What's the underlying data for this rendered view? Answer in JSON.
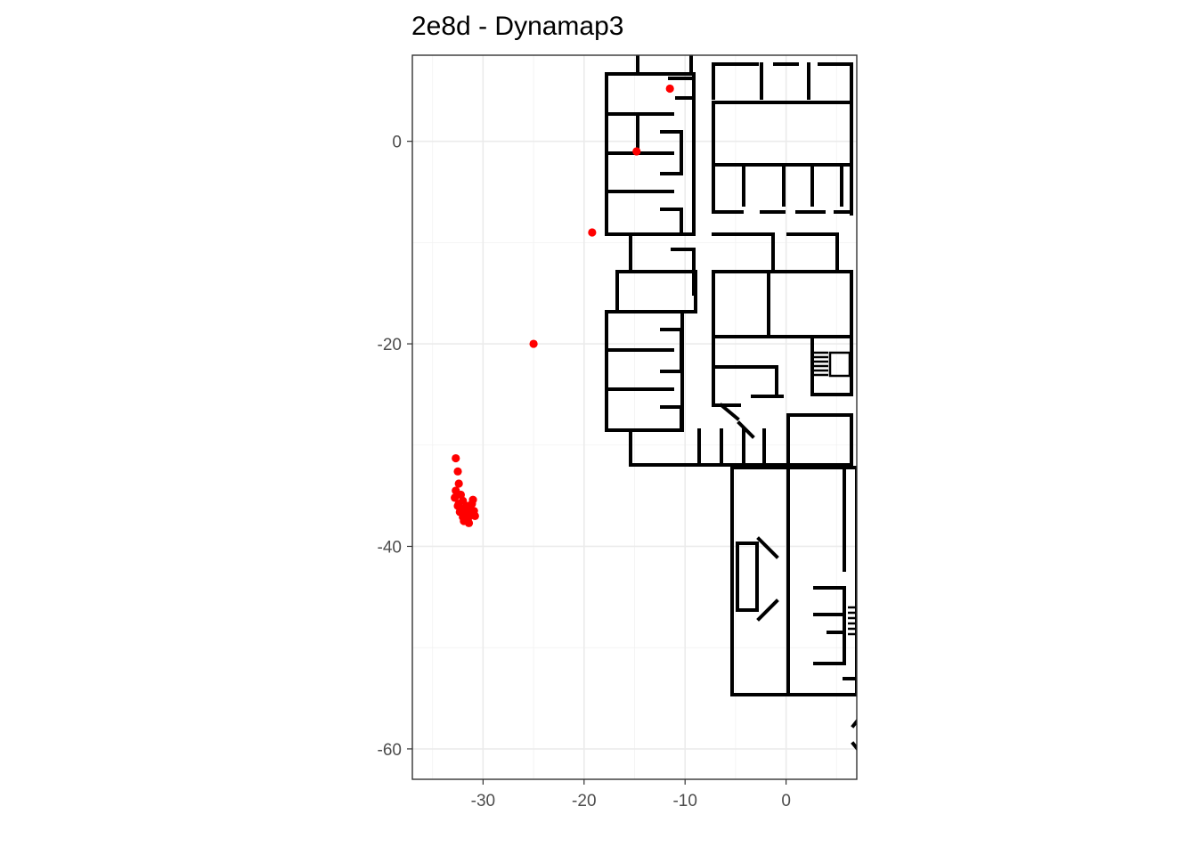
{
  "chart_data": {
    "type": "scatter",
    "title": "2e8d - Dynamap3",
    "xlabel": "",
    "ylabel": "",
    "xlim": [
      -37,
      7
    ],
    "ylim": [
      -63,
      8.5
    ],
    "x_ticks": [
      -30,
      -20,
      -10,
      0
    ],
    "y_ticks": [
      0,
      -20,
      -40,
      -60
    ],
    "x_tick_labels": [
      "-30",
      "-20",
      "-10",
      "0"
    ],
    "y_tick_labels": [
      "0",
      "-20",
      "-40",
      "-60"
    ],
    "grid": true,
    "legend": "none",
    "point_color": "#ff0000",
    "background": "floor plan map",
    "points": [
      {
        "x": -11.5,
        "y": 5.2
      },
      {
        "x": -14.8,
        "y": -1.0
      },
      {
        "x": -19.2,
        "y": -9.0
      },
      {
        "x": -25.0,
        "y": -20.0
      },
      {
        "x": -32.7,
        "y": -31.3
      },
      {
        "x": -32.5,
        "y": -32.6
      },
      {
        "x": -32.4,
        "y": -33.8
      },
      {
        "x": -32.7,
        "y": -34.5
      },
      {
        "x": -32.2,
        "y": -34.9
      },
      {
        "x": -32.8,
        "y": -35.2
      },
      {
        "x": -32.0,
        "y": -35.5
      },
      {
        "x": -31.0,
        "y": -35.4
      },
      {
        "x": -32.4,
        "y": -35.8
      },
      {
        "x": -31.6,
        "y": -36.0
      },
      {
        "x": -32.1,
        "y": -36.3
      },
      {
        "x": -31.3,
        "y": -36.2
      },
      {
        "x": -30.9,
        "y": -36.5
      },
      {
        "x": -32.3,
        "y": -36.6
      },
      {
        "x": -31.8,
        "y": -36.8
      },
      {
        "x": -31.2,
        "y": -36.9
      },
      {
        "x": -32.0,
        "y": -37.1
      },
      {
        "x": -31.5,
        "y": -37.3
      },
      {
        "x": -30.8,
        "y": -37.0
      },
      {
        "x": -31.9,
        "y": -37.5
      },
      {
        "x": -31.4,
        "y": -37.7
      },
      {
        "x": -31.7,
        "y": -36.4
      },
      {
        "x": -32.5,
        "y": -36.0
      },
      {
        "x": -31.1,
        "y": -35.8
      }
    ]
  }
}
